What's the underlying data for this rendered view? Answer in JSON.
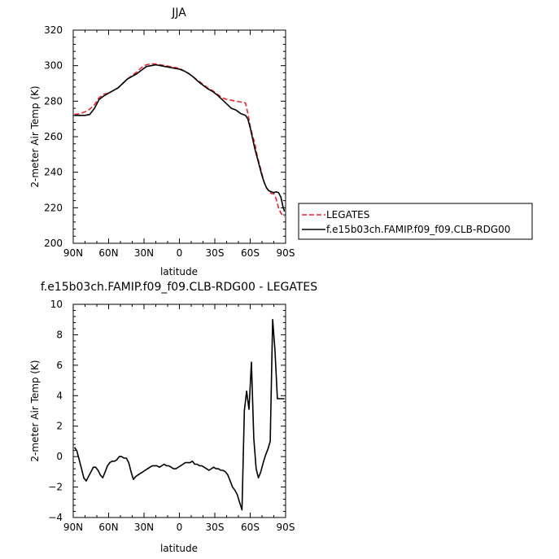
{
  "chart_data": [
    {
      "type": "line",
      "title": "JJA",
      "xlabel": "latitude",
      "ylabel": "2-meter Air Temp (K)",
      "xlim": [
        90,
        -90
      ],
      "ylim": [
        200,
        320
      ],
      "xticks": [
        90,
        60,
        30,
        0,
        -30,
        -60,
        -90
      ],
      "xtick_labels": [
        "90N",
        "60N",
        "30N",
        "0",
        "30S",
        "60S",
        "90S"
      ],
      "yticks": [
        200,
        220,
        240,
        260,
        280,
        300,
        320
      ],
      "ytick_labels": [
        "200",
        "220",
        "240",
        "260",
        "280",
        "300",
        "320"
      ],
      "legend": "right",
      "series": [
        {
          "name": "LEGATES",
          "color": "#e8262b",
          "dash": "dashed",
          "x": [
            89,
            84,
            80,
            76,
            72,
            68,
            64,
            60,
            56,
            52,
            48,
            44,
            40,
            36,
            32,
            28,
            24,
            20,
            16,
            12,
            8,
            4,
            0,
            -4,
            -8,
            -12,
            -16,
            -20,
            -24,
            -28,
            -32,
            -36,
            -40,
            -44,
            -48,
            -52,
            -56,
            -58,
            -60,
            -62,
            -64,
            -66,
            -68,
            -70,
            -72,
            -74,
            -76,
            -78,
            -80,
            -82,
            -84,
            -86,
            -88,
            -89
          ],
          "y": [
            272.5,
            273,
            274,
            275.5,
            278,
            282,
            284,
            284.5,
            286,
            287.5,
            290,
            292.5,
            294.5,
            296.5,
            299,
            300.5,
            301,
            301,
            300.5,
            300,
            299.5,
            299,
            298.5,
            297,
            295.5,
            293.5,
            291.5,
            289.5,
            287.5,
            286,
            284,
            282,
            281,
            280.5,
            280,
            279.5,
            279,
            273,
            266,
            260.5,
            256,
            249,
            244,
            239,
            234,
            231,
            229,
            228,
            228,
            225,
            220,
            217,
            215.5,
            215
          ]
        },
        {
          "name": "f.e15b03ch.FAMIP.f09_f09.CLB-RDG00",
          "color": "#000000",
          "dash": "solid",
          "x": [
            89,
            84,
            80,
            76,
            72,
            68,
            64,
            60,
            56,
            52,
            48,
            44,
            40,
            36,
            32,
            28,
            24,
            20,
            16,
            12,
            8,
            4,
            0,
            -4,
            -8,
            -12,
            -16,
            -20,
            -24,
            -28,
            -32,
            -36,
            -40,
            -44,
            -48,
            -52,
            -56,
            -58,
            -60,
            -62,
            -64,
            -66,
            -68,
            -70,
            -72,
            -74,
            -76,
            -78,
            -80,
            -82,
            -84,
            -86,
            -88,
            -89
          ],
          "y": [
            272,
            272,
            272,
            272.5,
            276,
            281,
            283,
            284.5,
            286,
            287.5,
            290,
            292.5,
            294,
            295.5,
            297.5,
            299.5,
            300,
            300.5,
            300,
            299.5,
            299,
            298.5,
            298,
            297,
            295.5,
            293.5,
            291,
            289,
            287,
            285.5,
            283.5,
            281,
            278.5,
            276,
            275,
            273,
            272,
            270,
            265,
            259,
            253,
            248,
            243,
            238,
            234,
            231,
            229.5,
            229,
            228.5,
            229,
            228.5,
            226,
            220,
            218
          ]
        }
      ]
    },
    {
      "type": "line",
      "title": "f.e15b03ch.FAMIP.f09_f09.CLB-RDG00 - LEGATES",
      "xlabel": "latitude",
      "ylabel": "2-meter Air Temp (K)",
      "xlim": [
        90,
        -90
      ],
      "ylim": [
        -4,
        10
      ],
      "xticks": [
        90,
        60,
        30,
        0,
        -30,
        -60,
        -90
      ],
      "xtick_labels": [
        "90N",
        "60N",
        "30N",
        "0",
        "30S",
        "60S",
        "90S"
      ],
      "yticks": [
        -4,
        -2,
        0,
        2,
        4,
        6,
        8,
        10
      ],
      "ytick_labels": [
        "−4",
        "−2",
        "0",
        "2",
        "4",
        "6",
        "8",
        "10"
      ],
      "grid": false,
      "series": [
        {
          "color": "#000000",
          "dash": "solid",
          "x": [
            89,
            87,
            85,
            83,
            81,
            79,
            77,
            75,
            73,
            71,
            69,
            67,
            65,
            63,
            61,
            59,
            57,
            55,
            53,
            51,
            49,
            47,
            45,
            43,
            41,
            39,
            37,
            35,
            33,
            31,
            29,
            27,
            25,
            23,
            21,
            19,
            17,
            15,
            13,
            11,
            9,
            7,
            5,
            3,
            1,
            -1,
            -3,
            -5,
            -7,
            -9,
            -11,
            -13,
            -15,
            -17,
            -19,
            -21,
            -23,
            -25,
            -27,
            -29,
            -31,
            -33,
            -35,
            -37,
            -39,
            -41,
            -43,
            -45,
            -47,
            -49,
            -51,
            -53,
            -55,
            -57,
            -59,
            -61,
            -63,
            -65,
            -67,
            -69,
            -71,
            -73,
            -75,
            -77,
            -79,
            -81,
            -83,
            -85,
            -87,
            -89
          ],
          "y": [
            0.6,
            0.4,
            -0.2,
            -0.8,
            -1.4,
            -1.6,
            -1.3,
            -1.0,
            -0.7,
            -0.7,
            -0.9,
            -1.2,
            -1.4,
            -1.0,
            -0.6,
            -0.4,
            -0.3,
            -0.3,
            -0.2,
            0.0,
            0.0,
            -0.1,
            -0.1,
            -0.4,
            -1.0,
            -1.5,
            -1.3,
            -1.2,
            -1.1,
            -1.0,
            -0.9,
            -0.8,
            -0.7,
            -0.6,
            -0.6,
            -0.6,
            -0.7,
            -0.6,
            -0.5,
            -0.6,
            -0.6,
            -0.7,
            -0.8,
            -0.8,
            -0.7,
            -0.6,
            -0.5,
            -0.4,
            -0.4,
            -0.4,
            -0.3,
            -0.5,
            -0.5,
            -0.6,
            -0.6,
            -0.7,
            -0.8,
            -0.9,
            -0.8,
            -0.7,
            -0.8,
            -0.8,
            -0.9,
            -0.9,
            -1.0,
            -1.2,
            -1.6,
            -2.0,
            -2.2,
            -2.5,
            -3.0,
            -3.5,
            3.0,
            4.3,
            3.1,
            6.2,
            1.2,
            -0.8,
            -1.4,
            -1.0,
            -0.4,
            0.1,
            0.5,
            1.0,
            9.0,
            7.0,
            3.8,
            3.8,
            3.8,
            3.8
          ]
        }
      ]
    }
  ]
}
